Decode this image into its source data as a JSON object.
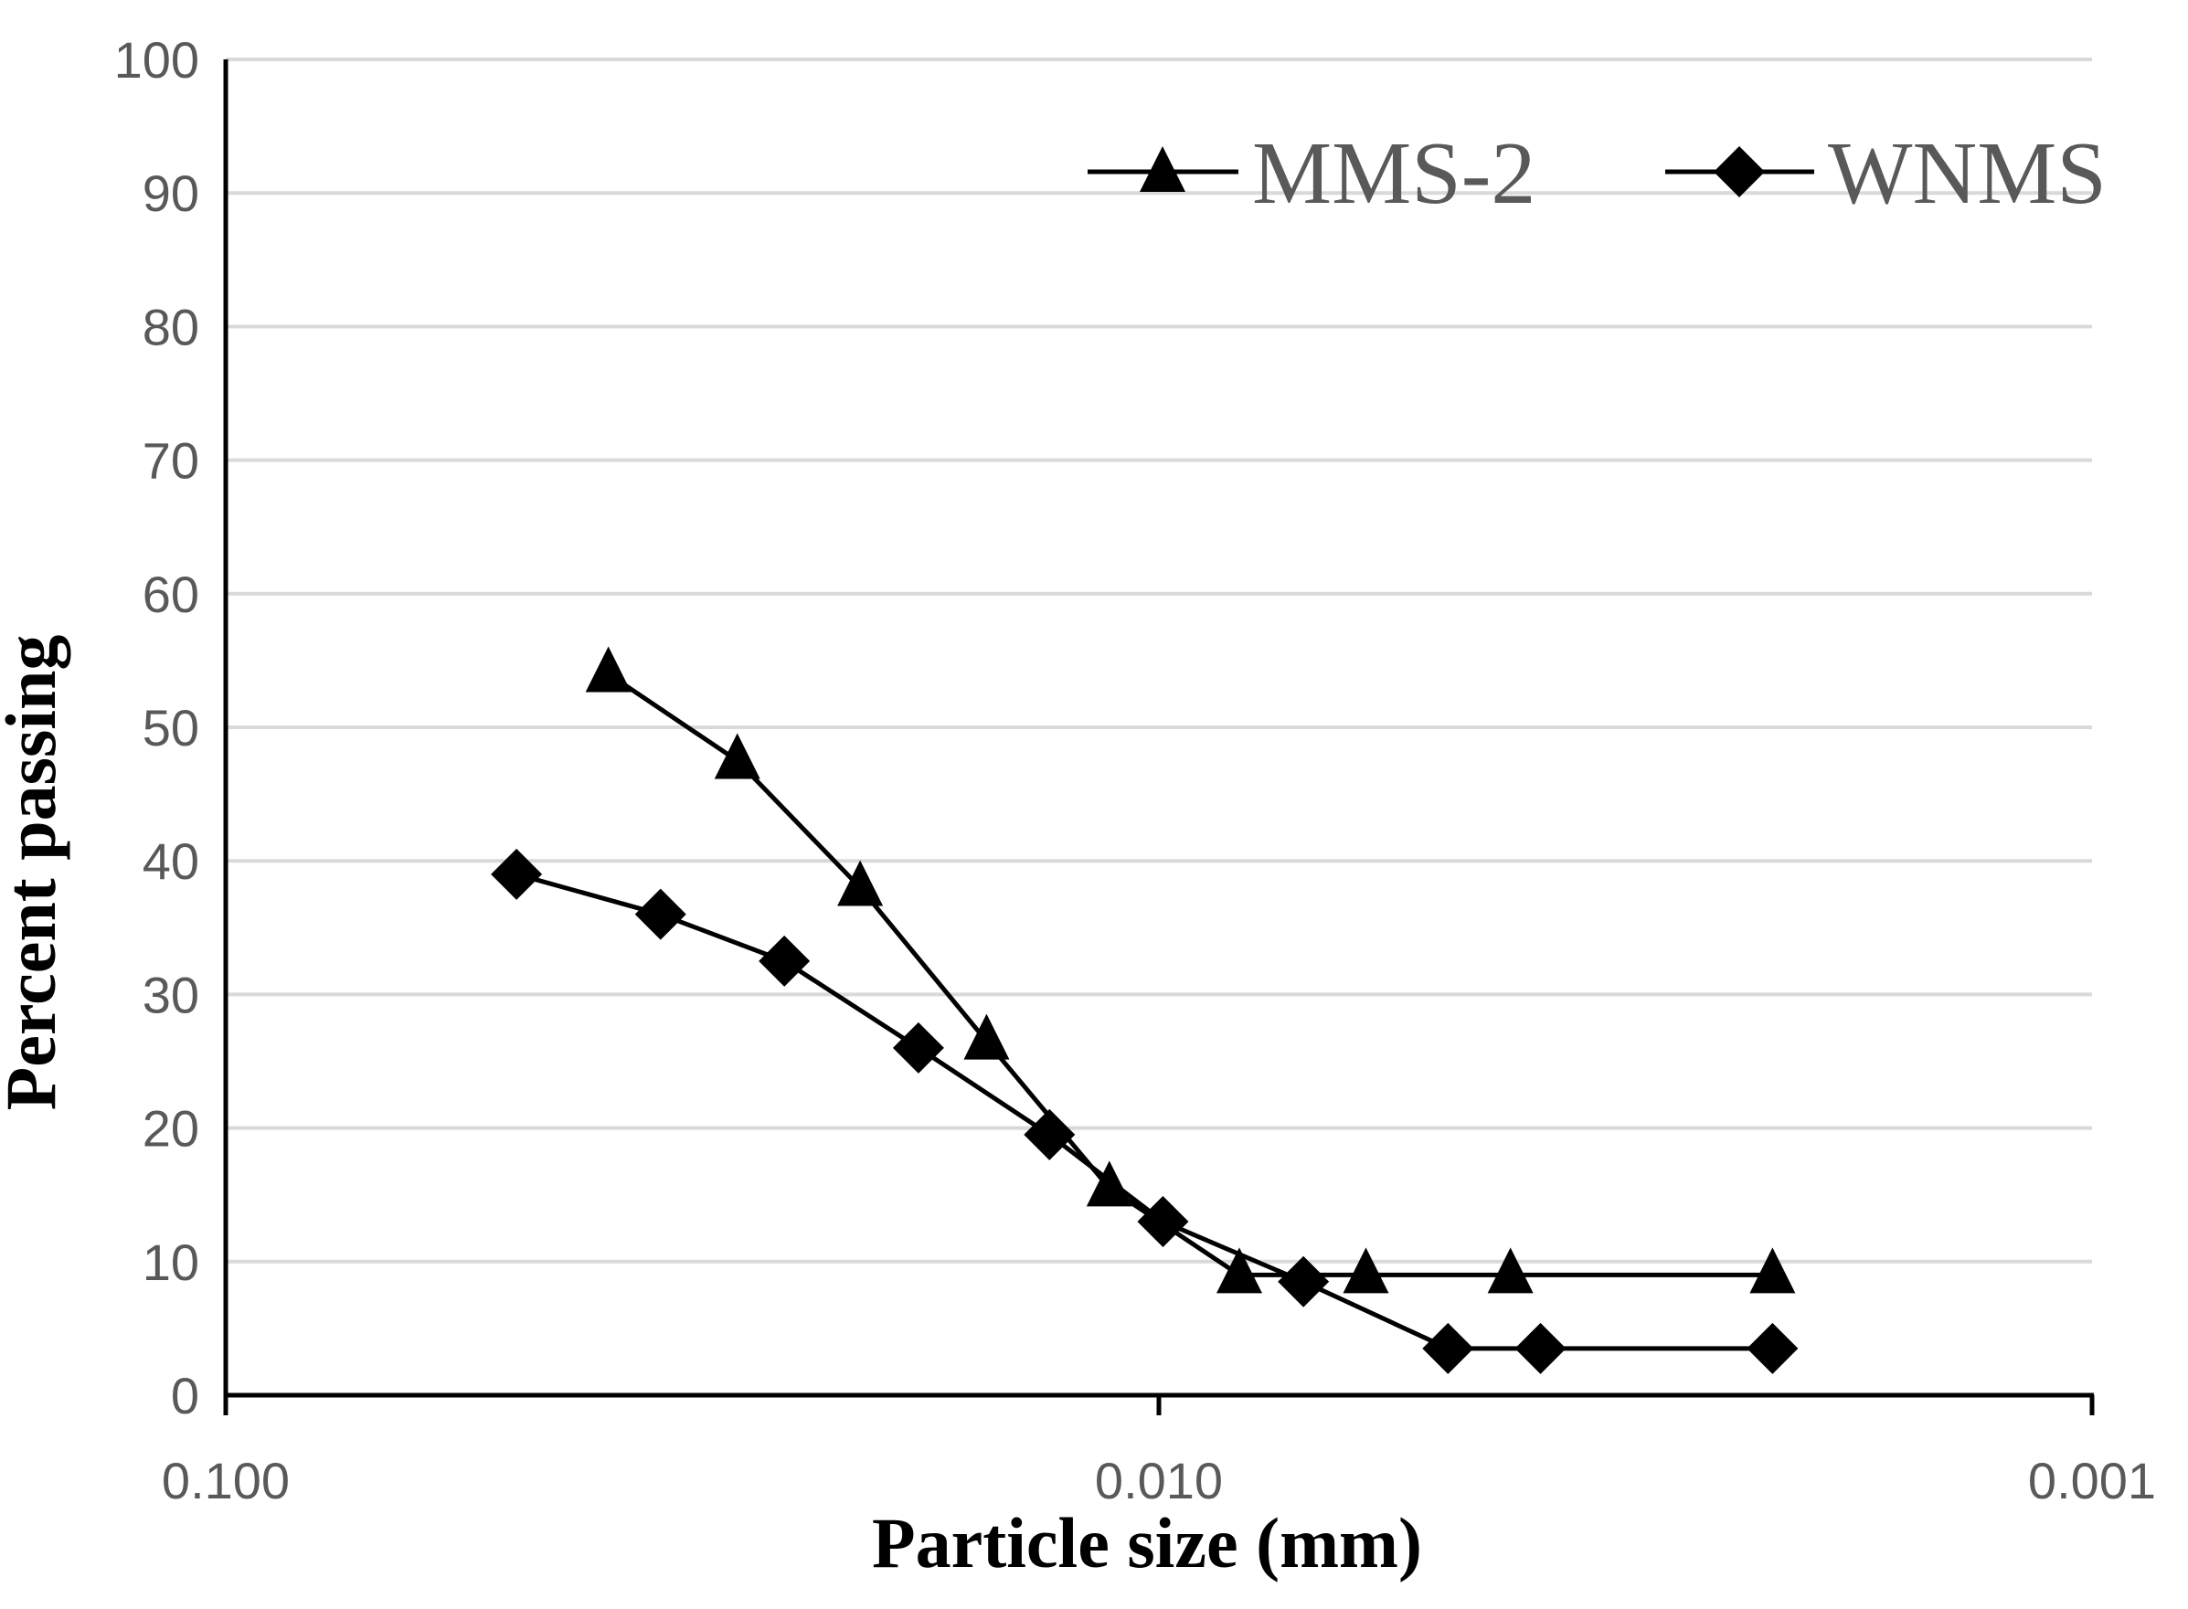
{
  "chart_data": {
    "type": "line",
    "title": "",
    "xlabel": "Particle size (mm)",
    "ylabel": "Percent passing",
    "x_scale": "log",
    "x_reversed": true,
    "xlim": [
      0.1,
      0.001
    ],
    "ylim": [
      0,
      100
    ],
    "x_ticks": [
      0.1,
      0.01,
      0.001
    ],
    "x_tick_labels": [
      "0.100",
      "0.010",
      "0.001"
    ],
    "y_ticks": [
      0,
      10,
      20,
      30,
      40,
      50,
      60,
      70,
      80,
      90,
      100
    ],
    "y_tick_labels": [
      "0",
      "10",
      "20",
      "30",
      "40",
      "50",
      "60",
      "70",
      "80",
      "90",
      "100"
    ],
    "grid": "horizontal",
    "legend_position": "top-right",
    "series": [
      {
        "name": "MMS-2",
        "marker": "triangle",
        "x": [
          0.0389,
          0.0283,
          0.0209,
          0.0153,
          0.0113,
          0.0082,
          0.006,
          0.0042,
          0.0022
        ],
        "y": [
          54,
          47.5,
          38,
          26.5,
          15.5,
          9,
          9,
          9,
          9
        ]
      },
      {
        "name": "WNMS",
        "marker": "diamond",
        "x": [
          0.0488,
          0.0342,
          0.0252,
          0.0181,
          0.0131,
          0.0099,
          0.007,
          0.0049,
          0.0039,
          0.0022
        ],
        "y": [
          39,
          36,
          32.5,
          26,
          19.5,
          13,
          8.5,
          3.5,
          3.5,
          3.5
        ]
      }
    ]
  }
}
